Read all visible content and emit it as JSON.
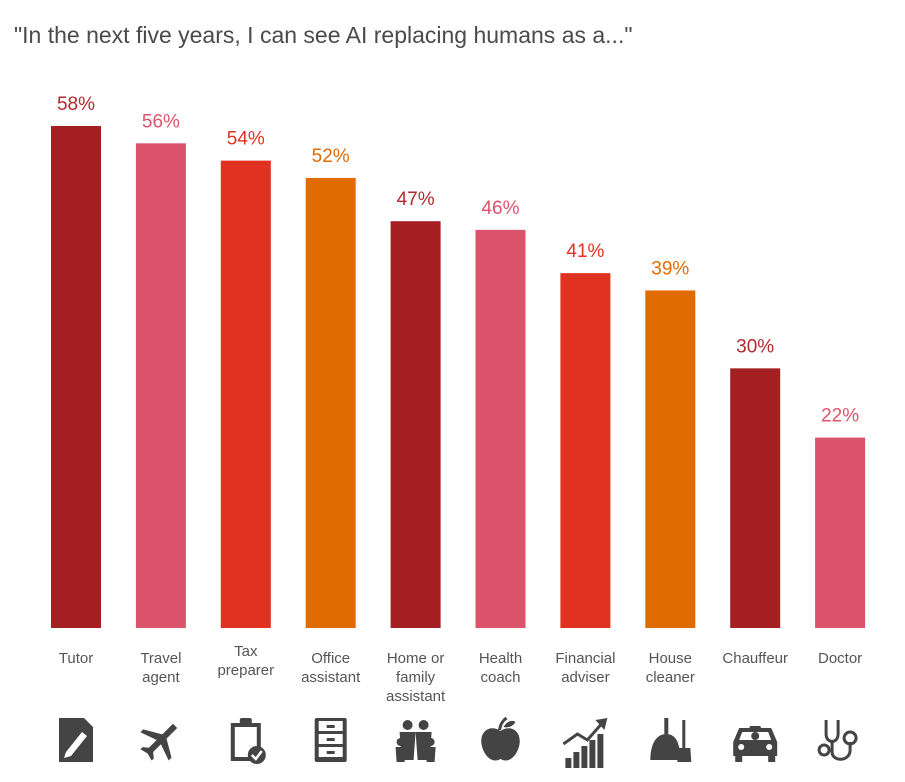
{
  "title": "\"In the next five years, I can see AI replacing humans as a...\"",
  "chart_data": {
    "type": "bar",
    "title": "\"In the next five years, I can see AI replacing humans as a...\"",
    "xlabel": "",
    "ylabel": "",
    "ylim": [
      0,
      58
    ],
    "grid": false,
    "value_suffix": "%",
    "categories": [
      "Tutor",
      "Travel agent",
      "Tax preparer",
      "Office assistant",
      "Home or family assistant",
      "Health coach",
      "Financial adviser",
      "House cleaner",
      "Chauffeur",
      "Doctor"
    ],
    "category_lines": [
      [
        "Tutor"
      ],
      [
        "Travel",
        "agent"
      ],
      [
        "Tax",
        "preparer"
      ],
      [
        "Office",
        "assistant"
      ],
      [
        "Home or",
        "family",
        "assistant"
      ],
      [
        "Health",
        "coach"
      ],
      [
        "Financial",
        "adviser"
      ],
      [
        "House",
        "cleaner"
      ],
      [
        "Chauffeur"
      ],
      [
        "Doctor"
      ]
    ],
    "values": [
      58,
      56,
      54,
      52,
      47,
      46,
      41,
      39,
      30,
      22
    ],
    "value_labels": [
      "58%",
      "56%",
      "54%",
      "52%",
      "47%",
      "46%",
      "41%",
      "39%",
      "30%",
      "22%"
    ],
    "colors": [
      "#a51f22",
      "#dd536b",
      "#e03121",
      "#e06b00",
      "#a51f22",
      "#dd536b",
      "#e03121",
      "#e06b00",
      "#a51f22",
      "#dd536b"
    ],
    "label_colors": [
      "#b02a2e",
      "#dd536b",
      "#e03121",
      "#e06b00",
      "#b02a2e",
      "#dd536b",
      "#e03121",
      "#e06b00",
      "#b02a2e",
      "#dd536b"
    ],
    "icons": [
      "document-pen-icon",
      "airplane-icon",
      "clipboard-check-icon",
      "file-cabinet-icon",
      "family-icon",
      "apple-icon",
      "growth-chart-icon",
      "broom-dustpan-icon",
      "car-driver-icon",
      "stethoscope-icon"
    ]
  }
}
